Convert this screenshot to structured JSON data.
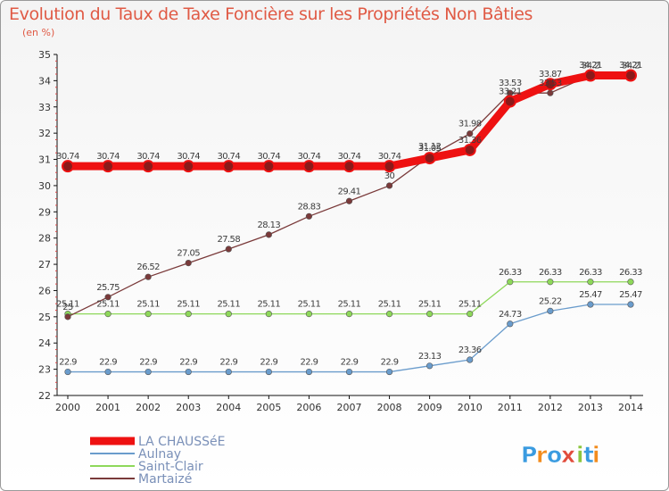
{
  "header": {
    "title": "Evolution du Taux de Taxe Foncière sur les Propriétés Non Bâties",
    "unit": "(en %)"
  },
  "brand": {
    "letters": [
      "P",
      "r",
      "o",
      "x",
      "i",
      "t",
      "i"
    ],
    "colors": [
      "#3a9be0",
      "#f28c1e",
      "#3a9be0",
      "#e14c3c",
      "#8cc63f",
      "#3a9be0",
      "#f28c1e"
    ]
  },
  "chart_data": {
    "type": "line",
    "title": "Evolution du Taux de Taxe Foncière sur les Propriétés Non Bâties",
    "ylabel": "(en %)",
    "xlabel": "",
    "ylim": [
      22,
      35
    ],
    "yticks": [
      22,
      23,
      24,
      25,
      26,
      27,
      28,
      29,
      30,
      31,
      32,
      33,
      34,
      35
    ],
    "categories": [
      "2000",
      "2001",
      "2002",
      "2003",
      "2004",
      "2005",
      "2006",
      "2007",
      "2008",
      "2009",
      "2010",
      "2011",
      "2012",
      "2013",
      "2014"
    ],
    "legend_position": "bottom-left",
    "grid": false,
    "series": [
      {
        "name": "LA CHAUSSéE",
        "color": "#ee1111",
        "values": [
          30.74,
          30.74,
          30.74,
          30.74,
          30.74,
          30.74,
          30.74,
          30.74,
          30.74,
          31.05,
          31.36,
          33.21,
          33.87,
          34.2,
          34.2
        ],
        "labels": [
          "30.74",
          "30.74",
          "30.74",
          "30.74",
          "30.74",
          "30.74",
          "30.74",
          "30.74",
          "30.74",
          "31.05",
          "31.36",
          "33.21",
          "33.87",
          "34.2",
          "34.2"
        ]
      },
      {
        "name": "Aulnay",
        "color": "#6a9ccc",
        "values": [
          22.9,
          22.9,
          22.9,
          22.9,
          22.9,
          22.9,
          22.9,
          22.9,
          22.9,
          23.13,
          23.36,
          24.73,
          25.22,
          25.47,
          25.47
        ],
        "labels": [
          "22.9",
          "22.9",
          "22.9",
          "22.9",
          "22.9",
          "22.9",
          "22.9",
          "22.9",
          "22.9",
          "23.13",
          "23.36",
          "24.73",
          "25.22",
          "25.47",
          "25.47"
        ]
      },
      {
        "name": "Saint-Clair",
        "color": "#8ed85a",
        "values": [
          25.11,
          25.11,
          25.11,
          25.11,
          25.11,
          25.11,
          25.11,
          25.11,
          25.11,
          25.11,
          25.11,
          26.33,
          26.33,
          26.33,
          26.33
        ],
        "labels": [
          "25.11",
          "25.11",
          "25.11",
          "25.11",
          "25.11",
          "25.11",
          "25.11",
          "25.11",
          "25.11",
          "25.11",
          "25.11",
          "26.33",
          "26.33",
          "26.33",
          "26.33"
        ]
      },
      {
        "name": "Martaizé",
        "color": "#7a3a3a",
        "values": [
          25.0,
          25.75,
          26.52,
          27.05,
          27.58,
          28.13,
          28.83,
          29.41,
          30.0,
          31.12,
          31.98,
          33.53,
          33.53,
          34.21,
          34.21
        ],
        "labels": [
          "25",
          "25.75",
          "26.52",
          "27.05",
          "27.58",
          "28.13",
          "28.83",
          "29.41",
          "30",
          "31.12",
          "31.98",
          "33.53",
          "33.53",
          "34.21",
          "34.21"
        ]
      }
    ]
  }
}
